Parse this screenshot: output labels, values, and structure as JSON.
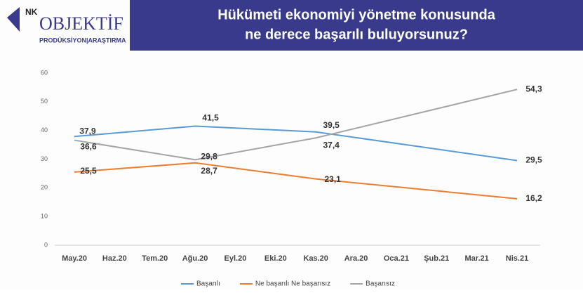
{
  "header": {
    "logo_prefix": "NK",
    "logo": "OBJEKTİF",
    "logo_sub": "PRODÜKSİYON|ARAŞTIRMA"
  },
  "chart_data": {
    "type": "line",
    "title": [
      "Hükümeti ekonomiyi yönetme konusunda",
      "ne derece başarılı buluyorsunuz?"
    ],
    "categories": [
      "May.20",
      "Haz.20",
      "Tem.20",
      "Ağu.20",
      "Eyl.20",
      "Eki.20",
      "Kas.20",
      "Ara.20",
      "Oca.21",
      "Şub.21",
      "Mar.21",
      "Nis.21"
    ],
    "span_gaps": true,
    "series": [
      {
        "name": "Başarılı",
        "color": "#5b9bd5",
        "values": [
          37.9,
          null,
          null,
          41.5,
          null,
          null,
          39.5,
          null,
          null,
          null,
          null,
          29.5
        ],
        "value_labels": [
          "37,9",
          null,
          null,
          "41,5",
          null,
          null,
          "39,5",
          null,
          null,
          null,
          null,
          "29,5"
        ]
      },
      {
        "name": "Ne başarılı Ne başarısız",
        "color": "#ed7d31",
        "values": [
          25.5,
          null,
          null,
          28.7,
          null,
          null,
          23.1,
          null,
          null,
          null,
          null,
          16.2
        ],
        "value_labels": [
          "25,5",
          null,
          null,
          "28,7",
          null,
          null,
          "23,1",
          null,
          null,
          null,
          null,
          "16,2"
        ]
      },
      {
        "name": "Başarısız",
        "color": "#a5a5a5",
        "values": [
          36.6,
          null,
          null,
          29.8,
          null,
          null,
          37.4,
          null,
          null,
          null,
          null,
          54.3
        ],
        "value_labels": [
          "36,6",
          null,
          null,
          "29,8",
          null,
          null,
          "37,4",
          null,
          null,
          null,
          null,
          "54,3"
        ]
      }
    ],
    "ylim": [
      0,
      60
    ],
    "yticks": [
      0,
      10,
      20,
      30,
      40,
      50,
      60
    ],
    "grid": false,
    "legend": "bottom"
  }
}
